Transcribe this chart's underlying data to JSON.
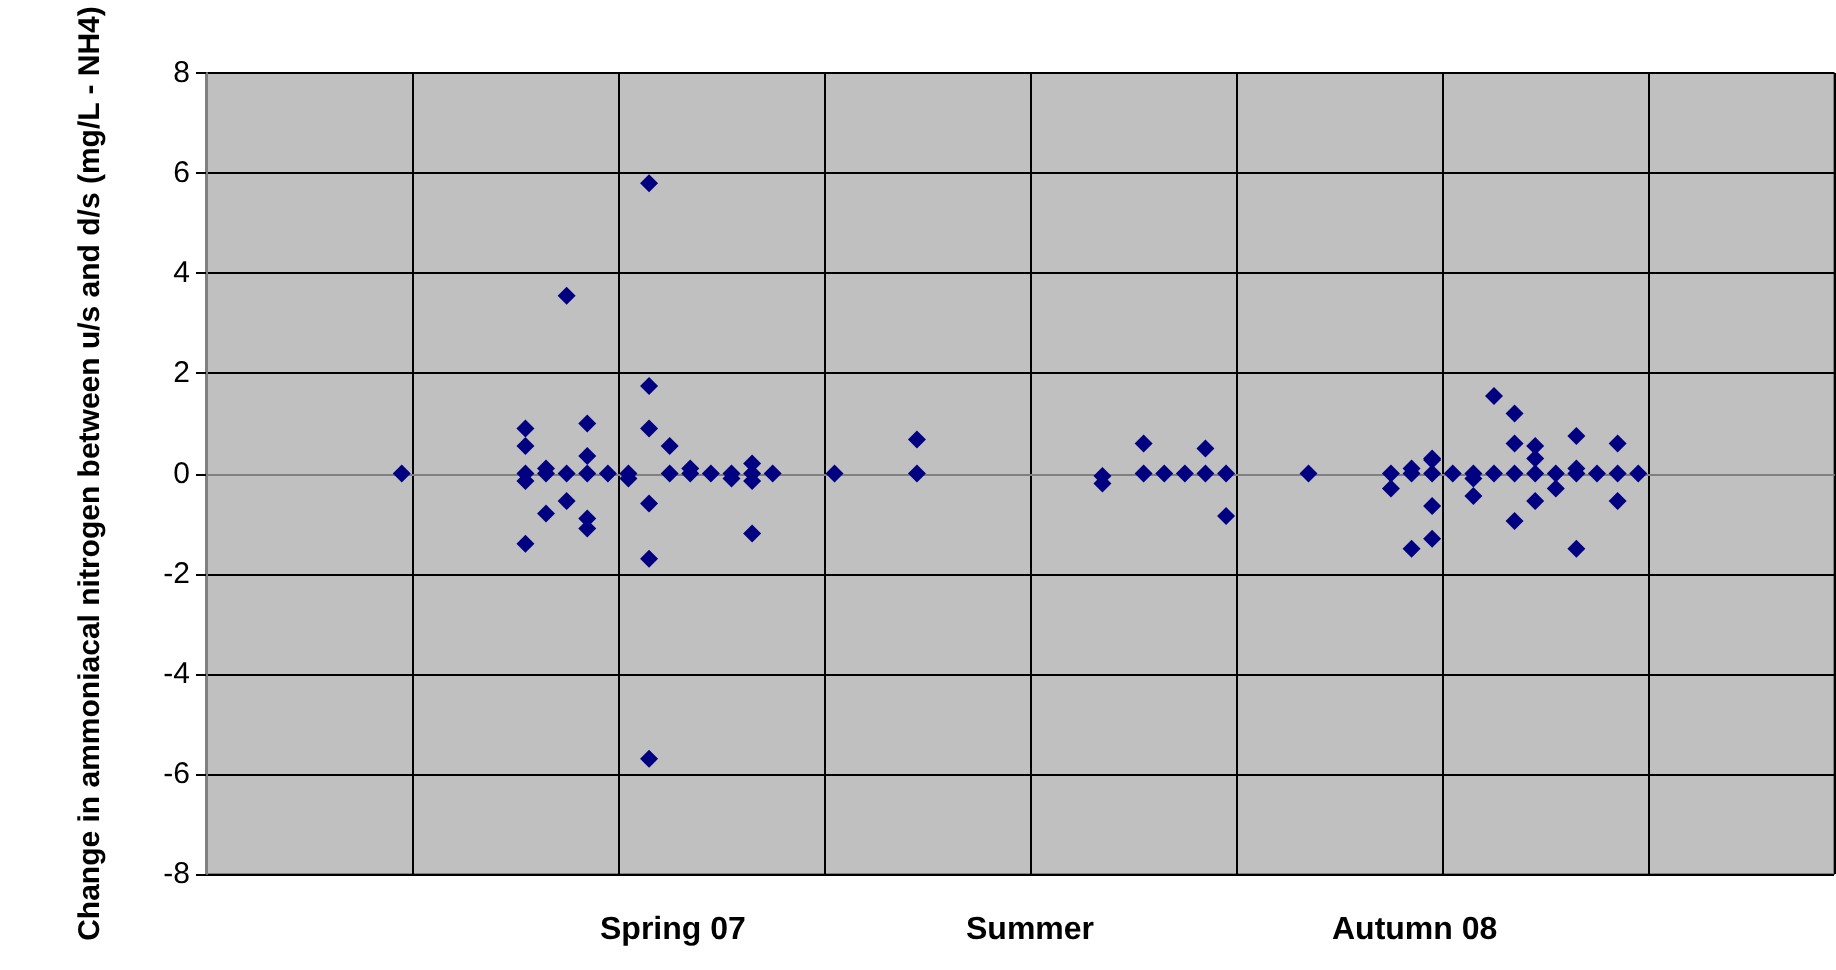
{
  "chart_data": {
    "type": "scatter",
    "ylabel": "Change in ammoniacal nitrogen between u/s and d/s (mg/L - NH4)",
    "annotations": [
      "Spring 07",
      "Summer",
      "Autumn 08"
    ],
    "categories": [
      null,
      null,
      null,
      null,
      null,
      null,
      null,
      null,
      null,
      null,
      null,
      null,
      null,
      null,
      null,
      null,
      null,
      null,
      null,
      null,
      null,
      null,
      null,
      null,
      null,
      null,
      null,
      null,
      null,
      null,
      null,
      null,
      null,
      null,
      null,
      null,
      null,
      null,
      null,
      null,
      null,
      null,
      null,
      null,
      null,
      null,
      null,
      null,
      null,
      null,
      null,
      null,
      null,
      null,
      null,
      null,
      null,
      null,
      null,
      null,
      null,
      null,
      null,
      null,
      null,
      null,
      null,
      null,
      null,
      null,
      null,
      null,
      null,
      null,
      null,
      null,
      null,
      null,
      null
    ],
    "ylim": [
      -8,
      8
    ],
    "yticks": [
      -8,
      -6,
      -4,
      -2,
      0,
      2,
      4,
      6,
      8
    ],
    "tick_labels": "y",
    "grid": true,
    "marker": "diamond",
    "series": [
      {
        "color": "#000080",
        "values": [
          null,
          null,
          null,
          null,
          null,
          null,
          null,
          null,
          null,
          0,
          null,
          null,
          null,
          null,
          null,
          0.9,
          -0.8,
          3.55,
          1.0,
          0,
          0,
          5.8,
          0.55,
          0,
          0,
          0,
          0.2,
          0,
          null,
          null,
          0,
          null,
          null,
          null,
          0.68,
          null,
          null,
          null,
          null,
          null,
          null,
          null,
          null,
          -0.05,
          null,
          0.6,
          0,
          0,
          0.5,
          -0.85,
          null,
          null,
          null,
          0,
          null,
          null,
          null,
          -0.3,
          -1.5,
          0.27,
          0,
          -0.45,
          1.55,
          1.2,
          0.55,
          -0.3,
          0.75,
          0,
          0.6,
          0,
          null,
          null,
          null,
          null,
          null,
          null,
          null,
          null,
          null
        ]
      },
      {
        "color": "#000080",
        "values": [
          null,
          null,
          null,
          null,
          null,
          null,
          null,
          null,
          null,
          null,
          null,
          null,
          null,
          null,
          null,
          0.55,
          0,
          -0.55,
          0.35,
          null,
          -0.1,
          1.75,
          0,
          0.1,
          null,
          -0.1,
          -1.2,
          null,
          null,
          null,
          null,
          null,
          null,
          null,
          0,
          null,
          null,
          null,
          null,
          null,
          null,
          null,
          null,
          -0.2,
          null,
          0,
          null,
          null,
          0,
          0,
          null,
          null,
          null,
          null,
          null,
          null,
          null,
          0,
          0,
          0.3,
          null,
          0,
          0,
          0.6,
          -0.55,
          0,
          -1.5,
          null,
          -0.55,
          null,
          null,
          null,
          null,
          null,
          null,
          null,
          null,
          null,
          null
        ]
      },
      {
        "color": "#000080",
        "values": [
          null,
          null,
          null,
          null,
          null,
          null,
          null,
          null,
          null,
          null,
          null,
          null,
          null,
          null,
          null,
          -1.4,
          0.1,
          0,
          -0.9,
          null,
          null,
          0.9,
          null,
          null,
          null,
          null,
          0,
          null,
          null,
          null,
          null,
          null,
          null,
          null,
          null,
          null,
          null,
          null,
          null,
          null,
          null,
          null,
          null,
          null,
          null,
          null,
          null,
          null,
          null,
          null,
          null,
          null,
          null,
          null,
          null,
          null,
          null,
          null,
          0.1,
          -0.65,
          null,
          -0.1,
          null,
          -0.95,
          0.3,
          null,
          0,
          null,
          0,
          null,
          null,
          null,
          null,
          null,
          null,
          null,
          null,
          null,
          null
        ]
      },
      {
        "color": "#000080",
        "values": [
          null,
          null,
          null,
          null,
          null,
          null,
          null,
          null,
          null,
          null,
          null,
          null,
          null,
          null,
          null,
          0,
          null,
          null,
          -1.1,
          null,
          null,
          -0.6,
          null,
          null,
          null,
          null,
          -0.15,
          null,
          null,
          null,
          null,
          null,
          null,
          null,
          null,
          null,
          null,
          null,
          null,
          null,
          null,
          null,
          null,
          null,
          null,
          null,
          null,
          null,
          null,
          null,
          null,
          null,
          null,
          null,
          null,
          null,
          null,
          null,
          null,
          -1.3,
          null,
          null,
          null,
          0,
          0,
          null,
          0.1,
          null,
          null,
          null,
          null,
          null,
          null,
          null,
          null,
          null,
          null,
          null,
          null
        ]
      },
      {
        "color": "#000080",
        "values": [
          null,
          null,
          null,
          null,
          null,
          null,
          null,
          null,
          null,
          null,
          null,
          null,
          null,
          null,
          null,
          -0.15,
          null,
          null,
          0,
          null,
          null,
          -1.7,
          null,
          null,
          null,
          null,
          null,
          null,
          null,
          null,
          null,
          null,
          null,
          null,
          null,
          null,
          null,
          null,
          null,
          null,
          null,
          null,
          null,
          null,
          null,
          null,
          null,
          null,
          null,
          null,
          null,
          null,
          null,
          null,
          null,
          null,
          null,
          null,
          null,
          0,
          null,
          null,
          null,
          null,
          null,
          null,
          null,
          null,
          null,
          null,
          null,
          null,
          null,
          null,
          null,
          null,
          null,
          null,
          null
        ]
      },
      {
        "color": "#000080",
        "values": [
          null,
          null,
          null,
          null,
          null,
          null,
          null,
          null,
          null,
          null,
          null,
          null,
          null,
          null,
          null,
          null,
          null,
          null,
          null,
          null,
          null,
          -5.7,
          null,
          null,
          null,
          null,
          null,
          null,
          null,
          null,
          null,
          null,
          null,
          null,
          null,
          null,
          null,
          null,
          null,
          null,
          null,
          null,
          null,
          null,
          null,
          null,
          null,
          null,
          null,
          null,
          null,
          null,
          null,
          null,
          null,
          null,
          null,
          null,
          null,
          null,
          null,
          null,
          null,
          null,
          null,
          null,
          null,
          null,
          null,
          null,
          null,
          null,
          null,
          null,
          null,
          null,
          null,
          null,
          null
        ]
      }
    ]
  }
}
